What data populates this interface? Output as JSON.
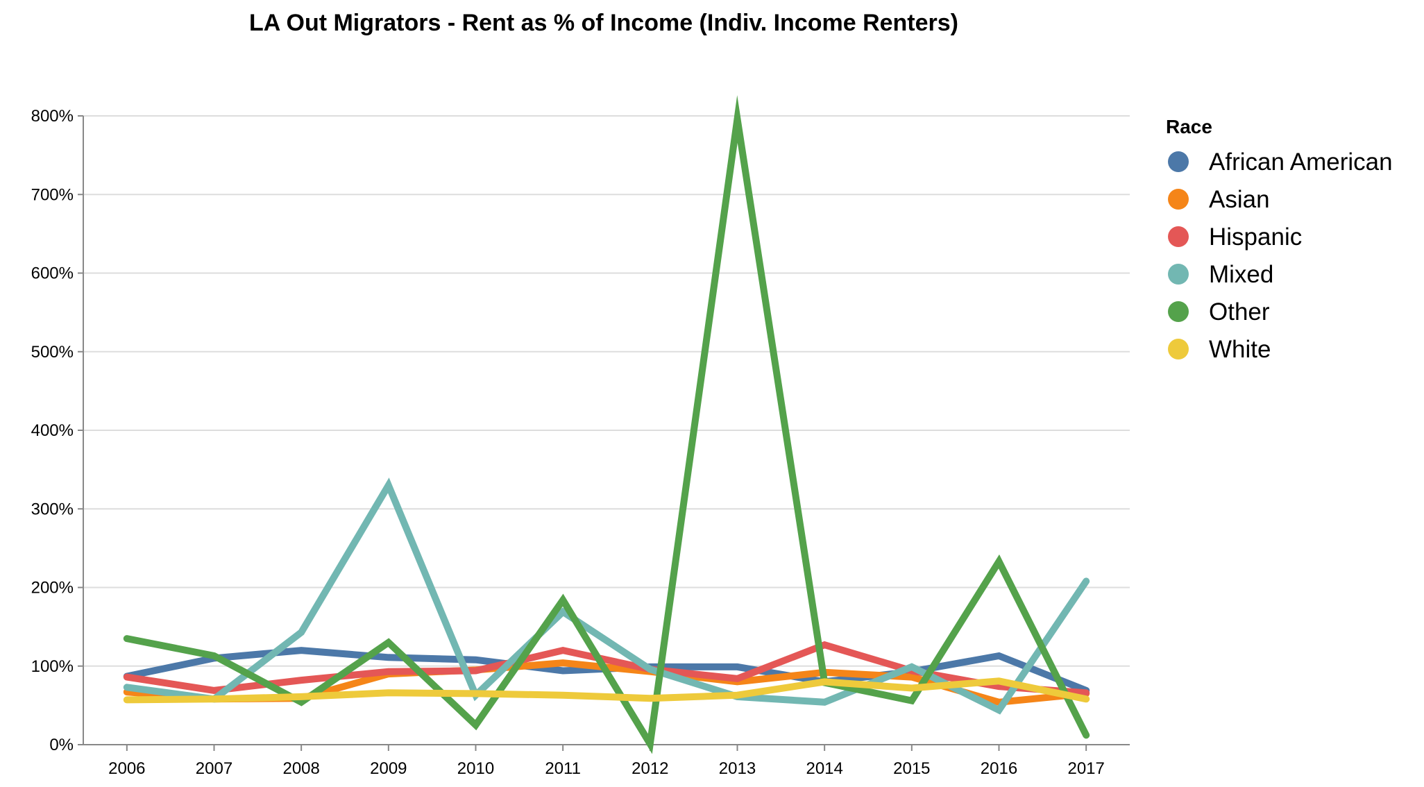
{
  "chart_data": {
    "type": "line",
    "title": "LA Out Migrators - Rent as % of Income (Indiv. Income Renters)",
    "xlabel": "",
    "ylabel": "",
    "x": [
      "2006",
      "2007",
      "2008",
      "2009",
      "2010",
      "2011",
      "2012",
      "2013",
      "2014",
      "2015",
      "2016",
      "2017"
    ],
    "ylim": [
      0,
      800
    ],
    "y_ticks": [
      "0%",
      "100%",
      "200%",
      "300%",
      "400%",
      "500%",
      "600%",
      "700%",
      "800%"
    ],
    "grid": true,
    "legend": {
      "title": "Race",
      "position": "right"
    },
    "series": [
      {
        "name": "African American",
        "color": "#4c78a8",
        "values": [
          87,
          110,
          120,
          111,
          108,
          94,
          99,
          99,
          80,
          93,
          113,
          69
        ]
      },
      {
        "name": "Asian",
        "color": "#f58518",
        "values": [
          67,
          58,
          59,
          90,
          95,
          104,
          93,
          80,
          92,
          86,
          54,
          65
        ]
      },
      {
        "name": "Hispanic",
        "color": "#e45756",
        "values": [
          86,
          69,
          82,
          93,
          94,
          120,
          96,
          84,
          127,
          94,
          74,
          66
        ]
      },
      {
        "name": "Mixed",
        "color": "#72b7b2",
        "values": [
          73,
          58,
          143,
          330,
          63,
          169,
          96,
          61,
          54,
          99,
          44,
          208
        ]
      },
      {
        "name": "Other",
        "color": "#54a24b",
        "values": [
          135,
          113,
          54,
          130,
          25,
          184,
          1,
          796,
          79,
          56,
          233,
          12
        ]
      },
      {
        "name": "White",
        "color": "#eeca3b",
        "values": [
          57,
          58,
          61,
          66,
          65,
          63,
          59,
          63,
          80,
          72,
          81,
          58
        ]
      }
    ]
  }
}
